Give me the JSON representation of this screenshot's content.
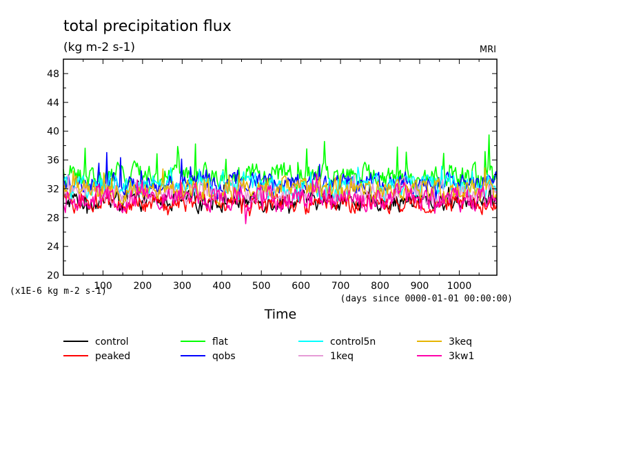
{
  "chart_data": {
    "type": "line",
    "title": "total precipitation flux",
    "units": "(kg m-2 s-1)",
    "source_label": "MRI",
    "scale_note": "(x1E-6 kg m-2 s-1)",
    "xlabel": "Time",
    "xunits_note": "(days since 0000-01-01 00:00:00)",
    "ylabel": "",
    "xlim": [
      0,
      1095
    ],
    "ylim": [
      20,
      50
    ],
    "x_ticks": [
      100,
      200,
      300,
      400,
      500,
      600,
      700,
      800,
      900,
      1000
    ],
    "y_ticks": [
      20,
      24,
      28,
      32,
      36,
      40,
      44,
      48
    ],
    "legend_position": "bottom",
    "series": [
      {
        "name": "control",
        "color": "#000000",
        "mean": 30.3,
        "amp": 1.0,
        "spike": 1.6
      },
      {
        "name": "peaked",
        "color": "#ff0000",
        "mean": 30.0,
        "amp": 1.0,
        "spike": 1.6
      },
      {
        "name": "flat",
        "color": "#00ff00",
        "mean": 33.8,
        "amp": 1.3,
        "spike": 4.0
      },
      {
        "name": "qobs",
        "color": "#0000ff",
        "mean": 33.0,
        "amp": 1.1,
        "spike": 3.5
      },
      {
        "name": "control5n",
        "color": "#00ffff",
        "mean": 32.3,
        "amp": 1.3,
        "spike": 2.0
      },
      {
        "name": "1keq",
        "color": "#e59ad6",
        "mean": 31.5,
        "amp": 1.1,
        "spike": 1.8
      },
      {
        "name": "3keq",
        "color": "#e6b400",
        "mean": 31.8,
        "amp": 1.2,
        "spike": 2.0
      },
      {
        "name": "3kw1",
        "color": "#ff00aa",
        "mean": 30.6,
        "amp": 1.3,
        "spike": 2.5
      }
    ]
  }
}
